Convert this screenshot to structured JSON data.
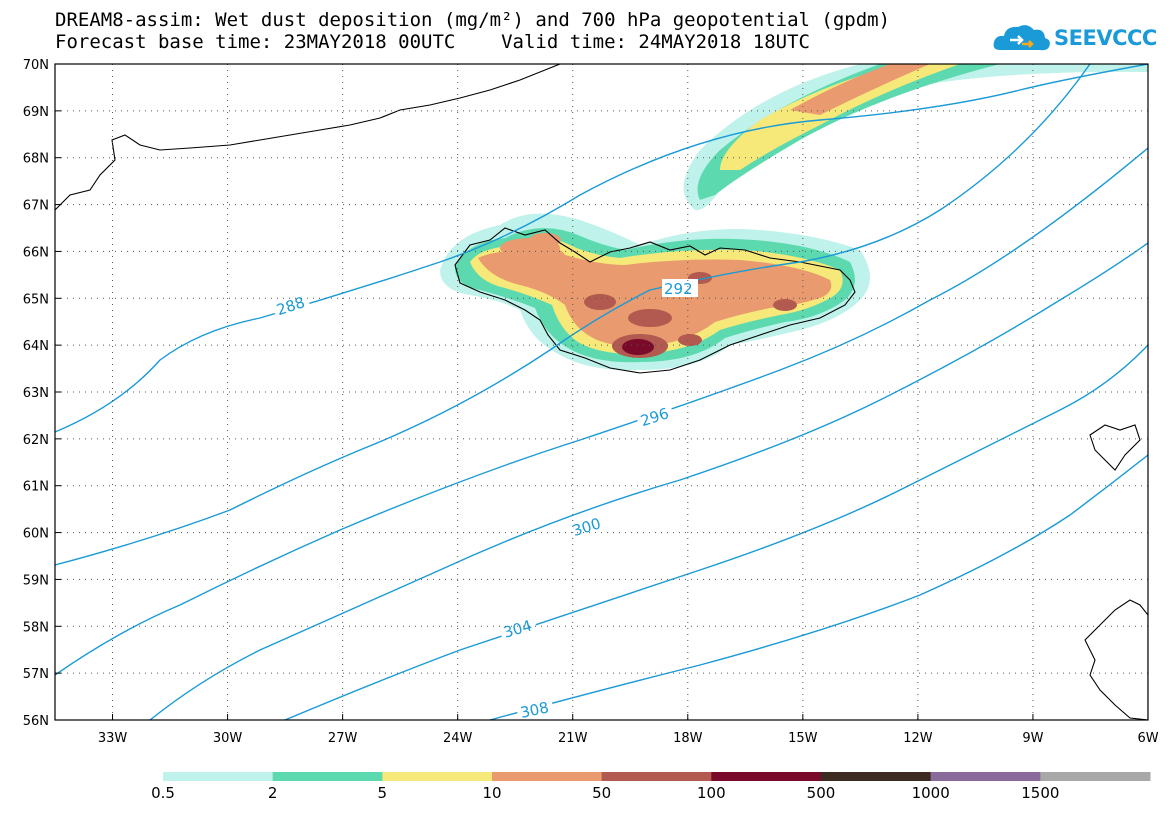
{
  "header": {
    "title_line_1": "DREAM8-assim: Wet dust deposition (mg/m²) and 700 hPa geopotential (gpdm)",
    "title_line_2": "Forecast base time: 23MAY2018 00UTC    Valid time: 24MAY2018 18UTC"
  },
  "logo": {
    "text": "SEEVCCC",
    "icon": "cloud-icon",
    "color": "#1a9ad7"
  },
  "map": {
    "lon_range": [
      -34.5,
      -6
    ],
    "lat_range": [
      56,
      70
    ],
    "lon_ticks": [
      "33W",
      "30W",
      "27W",
      "24W",
      "21W",
      "18W",
      "15W",
      "12W",
      "9W",
      "6W"
    ],
    "lat_ticks": [
      "70N",
      "69N",
      "68N",
      "67N",
      "66N",
      "65N",
      "64N",
      "63N",
      "62N",
      "61N",
      "60N",
      "59N",
      "58N",
      "57N",
      "56N"
    ],
    "gridlines": true,
    "contour_color": "#1a9ad7",
    "contour_labels": [
      "288",
      "292",
      "296",
      "300",
      "304",
      "308"
    ]
  },
  "legend": {
    "colors": [
      "#bff2ea",
      "#5dd9b0",
      "#f6e97a",
      "#e99a6e",
      "#b25a4f",
      "#7a0a2a",
      "#3d2a20",
      "#8a6a9a",
      "#a8a8a8"
    ],
    "labels": [
      "0.5",
      "2",
      "5",
      "10",
      "50",
      "100",
      "500",
      "1000",
      "1500"
    ]
  }
}
